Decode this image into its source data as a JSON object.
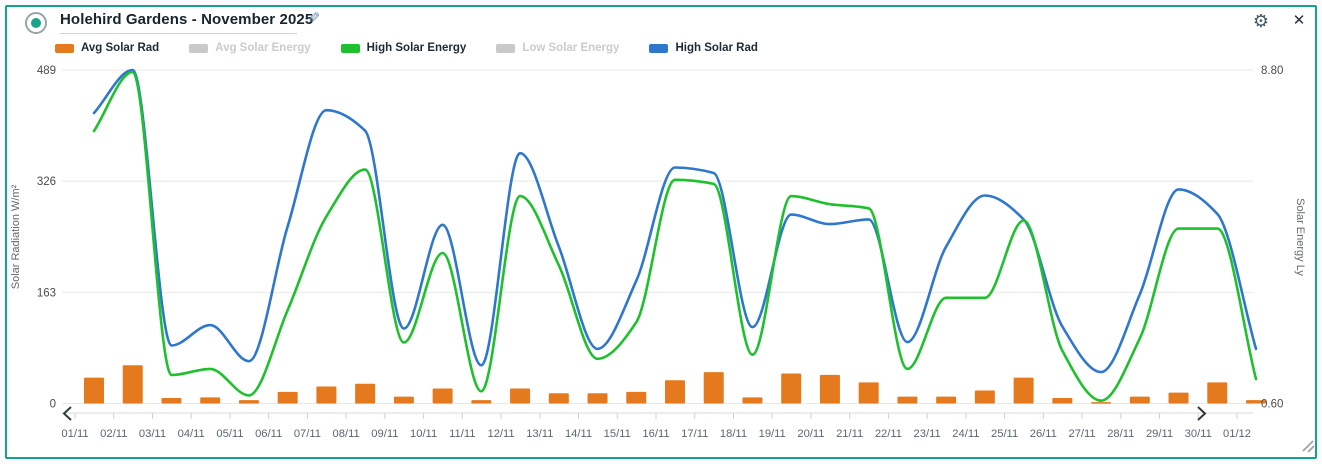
{
  "widget": {
    "title": "Holehird Gardens - November 2025"
  },
  "legend": [
    {
      "label": "Avg Solar Rad",
      "color": "#e5791d",
      "active": true
    },
    {
      "label": "Avg Solar Energy",
      "color": "#c9c9c9",
      "active": false
    },
    {
      "label": "High Solar Energy",
      "color": "#1ec12d",
      "active": true
    },
    {
      "label": "Low Solar Energy",
      "color": "#c9c9c9",
      "active": false
    },
    {
      "label": "High Solar Rad",
      "color": "#2e77cd",
      "active": true
    }
  ],
  "chart_data": {
    "type": "mixed",
    "title": "Holehird Gardens - November 2025",
    "grid": true,
    "legend_position": "top",
    "x": [
      "01/11",
      "02/11",
      "03/11",
      "04/11",
      "05/11",
      "06/11",
      "07/11",
      "08/11",
      "09/11",
      "10/11",
      "11/11",
      "12/11",
      "13/11",
      "14/11",
      "15/11",
      "16/11",
      "17/11",
      "18/11",
      "19/11",
      "20/11",
      "21/11",
      "22/11",
      "23/11",
      "24/11",
      "25/11",
      "26/11",
      "27/11",
      "28/11",
      "29/11",
      "30/11",
      "01/12"
    ],
    "left_axis": {
      "label": "Solar Radiation W/m²",
      "ticks": [
        0,
        163,
        326,
        489
      ],
      "range": [
        0,
        489
      ]
    },
    "right_axis": {
      "label": "Solar Energy Ly",
      "tick_labels": [
        "0.60",
        "8.80"
      ],
      "tick_values": [
        0.6,
        8.8
      ],
      "range": [
        0.6,
        8.8
      ]
    },
    "series": [
      {
        "name": "Avg Solar Rad",
        "type": "bar",
        "axis": "left",
        "color": "#e5791d",
        "values": [
          38,
          56,
          8,
          9,
          5,
          17,
          25,
          29,
          10,
          22,
          5,
          22,
          15,
          15,
          17,
          34,
          46,
          9,
          44,
          42,
          31,
          10,
          10,
          19,
          38,
          8,
          2,
          10,
          16,
          31,
          5
        ]
      },
      {
        "name": "High Solar Rad",
        "type": "line",
        "axis": "left",
        "color": "#2e77cd",
        "values": [
          426,
          489,
          85,
          115,
          62,
          260,
          430,
          400,
          110,
          262,
          56,
          367,
          230,
          80,
          180,
          346,
          338,
          112,
          277,
          263,
          270,
          90,
          230,
          305,
          270,
          113,
          46,
          160,
          314,
          278,
          80
        ]
      },
      {
        "name": "High Solar Energy",
        "type": "line",
        "axis": "right",
        "color": "#1ec12d",
        "values": [
          7.3,
          8.75,
          1.3,
          1.45,
          0.8,
          2.9,
          5.2,
          6.35,
          2.1,
          4.3,
          0.9,
          5.7,
          4.0,
          1.7,
          2.6,
          6.1,
          6.0,
          1.8,
          5.7,
          5.5,
          5.4,
          1.45,
          3.2,
          3.2,
          5.1,
          1.9,
          0.67,
          2.2,
          4.9,
          4.9,
          1.2
        ]
      }
    ]
  }
}
